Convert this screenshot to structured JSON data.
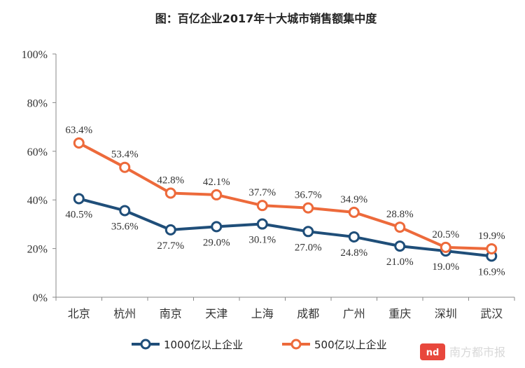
{
  "chart_data": {
    "type": "line",
    "title": "图：百亿企业2017年十大城市销售额集中度",
    "categories": [
      "北京",
      "杭州",
      "南京",
      "天津",
      "上海",
      "成都",
      "广州",
      "重庆",
      "深圳",
      "武汉"
    ],
    "y_ticks": [
      "0%",
      "20%",
      "40%",
      "60%",
      "80%",
      "100%"
    ],
    "ylim": [
      0,
      100
    ],
    "grid": false,
    "legend_position": "bottom-center",
    "series": [
      {
        "name": "1000亿以上企业",
        "color": "#1f4e79",
        "values": [
          40.5,
          35.6,
          27.7,
          29.0,
          30.1,
          27.0,
          24.8,
          21.0,
          19.0,
          16.9
        ],
        "labels": [
          "40.5%",
          "35.6%",
          "27.7%",
          "29.0%",
          "30.1%",
          "27.0%",
          "24.8%",
          "21.0%",
          "19.0%",
          "16.9%"
        ]
      },
      {
        "name": "500亿以上企业",
        "color": "#ed6a3b",
        "values": [
          63.4,
          53.4,
          42.8,
          42.1,
          37.7,
          36.7,
          34.9,
          28.8,
          20.5,
          19.9
        ],
        "labels": [
          "63.4%",
          "53.4%",
          "42.8%",
          "42.1%",
          "37.7%",
          "36.7%",
          "34.9%",
          "28.8%",
          "20.5%",
          "19.9%"
        ]
      }
    ]
  },
  "watermark": {
    "logo_text": "nd",
    "text": "南方都市报",
    "color": "#e8473c"
  }
}
